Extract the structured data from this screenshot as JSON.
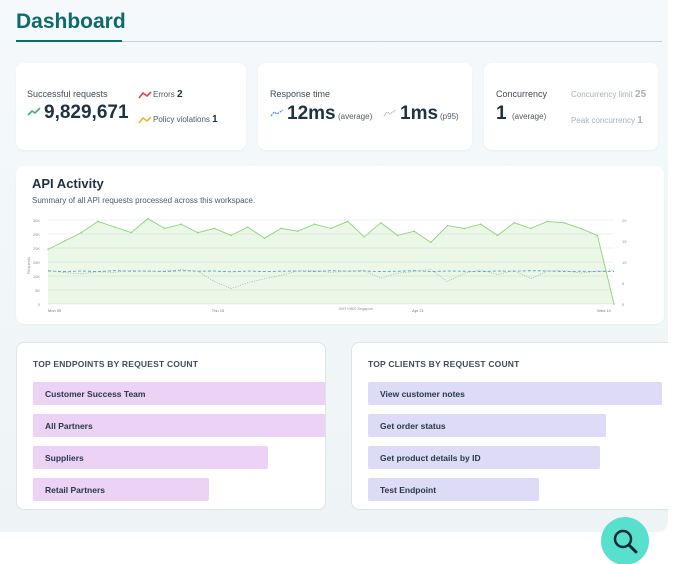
{
  "header": {
    "title": "Dashboard"
  },
  "requests": {
    "label": "Successful requests",
    "value": "9,829,671",
    "errors_label": "Errors",
    "errors_value": "2",
    "policy_label": "Policy violations",
    "policy_value": "1",
    "colors": {
      "success": "#3cb371",
      "errors": "#e0463c",
      "policy": "#f2b52a"
    }
  },
  "response": {
    "label": "Response time",
    "avg_value": "12ms",
    "avg_label": "(average)",
    "p95_value": "1ms",
    "p95_label": "(p95)"
  },
  "concurrency": {
    "label": "Concurrency",
    "value": "1",
    "value_label": "(average)",
    "limit_label": "Concurrency limit",
    "limit_value": "25",
    "peak_label": "Peak concurrency",
    "peak_value": "1"
  },
  "activity": {
    "title": "API Activity",
    "subtitle": "Summary of all API requests processed across this workspace."
  },
  "chart_data": {
    "type": "area",
    "y_ticks": [
      "0",
      "5K",
      "10K",
      "15K",
      "20K",
      "25K",
      "30K"
    ],
    "ylabel": "Requests",
    "y2_ticks": [
      "0",
      "5",
      "10",
      "15",
      "20"
    ],
    "x_ticks": [
      "Mon 05",
      "Thu 15",
      "Apr 21",
      "Wed 10"
    ],
    "timezone": "GMT+0800 Singapore",
    "ylim": [
      0,
      30000
    ],
    "y2lim": [
      0,
      20
    ],
    "grid": true,
    "series": [
      {
        "style": "area",
        "color": "#8fd47a",
        "values": [
          19500,
          22500,
          25500,
          29500,
          27500,
          25500,
          30500,
          27000,
          28500,
          25500,
          27000,
          24500,
          27500,
          23500,
          27000,
          26000,
          28500,
          27000,
          29500,
          24000,
          29000,
          24500,
          26000,
          22000,
          28000,
          27000,
          28500,
          24500,
          29000,
          27000,
          29500,
          29000,
          27000,
          24500,
          0
        ]
      },
      {
        "style": "dashed",
        "color": "#4a8fd8",
        "values": [
          11800,
          11600,
          11800,
          11600,
          11900,
          11700,
          11800,
          11600,
          11900,
          11700,
          11800,
          11500,
          11800,
          11600,
          11700,
          11800,
          11600,
          11900,
          11700,
          11800,
          11600,
          11700,
          11900,
          11600,
          11800,
          11700,
          11600,
          11800,
          11700,
          11900,
          11800,
          11600,
          11700,
          11600,
          11600
        ]
      },
      {
        "style": "dotted",
        "color": "#9aa3ab",
        "values": [
          12000,
          11200,
          10800,
          11500,
          11300,
          12000,
          11600,
          11800,
          12300,
          11700,
          8000,
          5500,
          7600,
          9000,
          10200,
          11800,
          12000,
          11300,
          11800,
          12000,
          9200,
          11000,
          11600,
          12300,
          8000,
          11000,
          12200,
          10500,
          12000,
          9000,
          11800,
          12000,
          11000,
          11800,
          11900
        ]
      }
    ]
  },
  "endpoints": {
    "title": "TOP ENDPOINTS BY REQUEST COUNT",
    "items": [
      {
        "label": "Customer Success Team",
        "share": 1.0
      },
      {
        "label": "All Partners",
        "share": 1.0
      },
      {
        "label": "Suppliers",
        "share": 0.8
      },
      {
        "label": "Retail Partners",
        "share": 0.6
      }
    ]
  },
  "clients": {
    "title": "TOP CLIENTS BY REQUEST COUNT",
    "items": [
      {
        "label": "View customer notes",
        "share": 1.0
      },
      {
        "label": "Get order status",
        "share": 0.81
      },
      {
        "label": "Get product details by ID",
        "share": 0.79
      },
      {
        "label": "Test Endpoint",
        "share": 0.58
      }
    ]
  },
  "fab": {
    "icon": "search-icon"
  },
  "colors": {
    "brand": "#0f6b6b",
    "fab": "#58e0cf",
    "endpoint_bar": "#ecd2f4",
    "client_bar": "#dedbf6"
  }
}
